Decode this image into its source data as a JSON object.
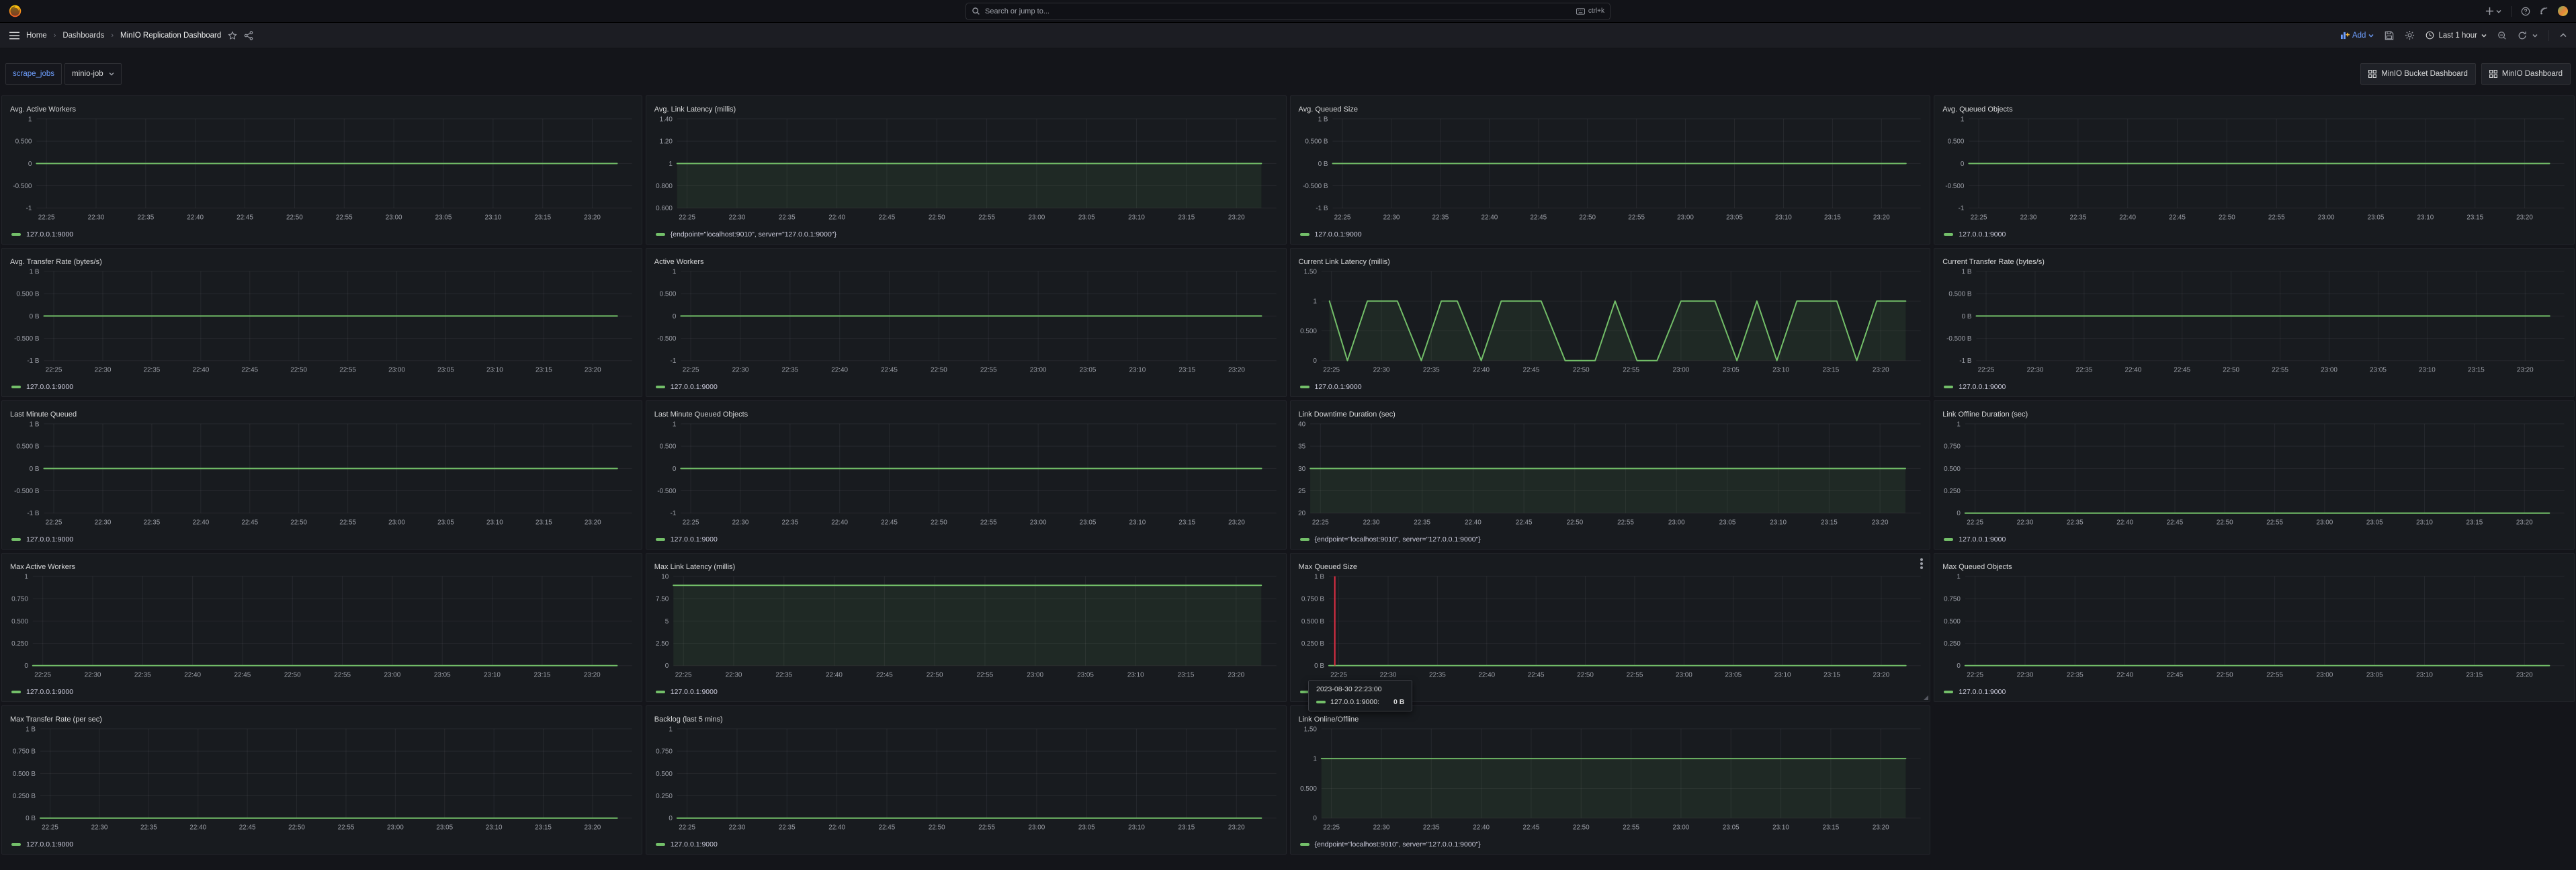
{
  "top_bar": {
    "search_placeholder": "Search or jump to...",
    "shortcut": "ctrl+k"
  },
  "nav": {
    "breadcrumb": [
      "Home",
      "Dashboards",
      "MinIO Replication Dashboard"
    ],
    "add_label": "Add",
    "time_range": "Last 1 hour"
  },
  "subheader": {
    "variable_label": "scrape_jobs",
    "variable_value": "minio-job",
    "links": [
      "MinIO Bucket Dashboard",
      "MinIO Dashboard"
    ]
  },
  "colors": {
    "accent_green": "#73bf69",
    "accent_green_fill": "rgba(115,191,105,0.09)",
    "link_blue": "#6e9fff",
    "annotation_red": "#e02f44",
    "panel_bg": "#181b1f",
    "axis_text": "#9da0a8",
    "grid_line": "rgba(204,204,220,0.08)"
  },
  "tooltip": {
    "time": "2023-08-30 22:23:00",
    "series_label": "127.0.0.1:9000:",
    "value": "0 B"
  },
  "chart_common": {
    "x_ticks": [
      "22:25",
      "22:30",
      "22:35",
      "22:40",
      "22:45",
      "22:50",
      "22:55",
      "23:00",
      "23:05",
      "23:10",
      "23:15",
      "23:20"
    ],
    "x_tick_minutes": [
      1,
      6,
      11,
      16,
      21,
      26,
      31,
      36,
      41,
      46,
      51,
      56
    ],
    "xlim": [
      0,
      60
    ],
    "grid": true,
    "legend_position": "bottom"
  },
  "chart_data": [
    {
      "title": "Avg. Active Workers",
      "type": "line",
      "y_ticks": [
        "1",
        "0.500",
        "0",
        "-0.500",
        "-1"
      ],
      "ylim": [
        -1,
        1
      ],
      "fill": false,
      "legend": "127.0.0.1:9000",
      "series": [
        {
          "name": "127.0.0.1:9000",
          "color": "#73bf69",
          "points": [
            [
              0,
              0
            ],
            [
              58.5,
              0
            ]
          ]
        }
      ]
    },
    {
      "title": "Avg. Link Latency (millis)",
      "type": "area",
      "y_ticks": [
        "1.40",
        "1.20",
        "1",
        "0.800",
        "0.600"
      ],
      "ylim": [
        0.6,
        1.4
      ],
      "fill": true,
      "legend": "{endpoint=\"localhost:9010\", server=\"127.0.0.1:9000\"}",
      "series": [
        {
          "name": "{endpoint=\"localhost:9010\", server=\"127.0.0.1:9000\"}",
          "color": "#73bf69",
          "points": [
            [
              0,
              1
            ],
            [
              58.5,
              1
            ]
          ]
        }
      ]
    },
    {
      "title": "Avg. Queued Size",
      "type": "line",
      "y_ticks": [
        "1 B",
        "0.500 B",
        "0 B",
        "-0.500 B",
        "-1 B"
      ],
      "ylim": [
        -1,
        1
      ],
      "fill": false,
      "legend": "127.0.0.1:9000",
      "series": [
        {
          "name": "127.0.0.1:9000",
          "color": "#73bf69",
          "points": [
            [
              0,
              0
            ],
            [
              58.5,
              0
            ]
          ]
        }
      ]
    },
    {
      "title": "Avg. Queued Objects",
      "type": "line",
      "y_ticks": [
        "1",
        "0.500",
        "0",
        "-0.500",
        "-1"
      ],
      "ylim": [
        -1,
        1
      ],
      "fill": false,
      "legend": "127.0.0.1:9000",
      "series": [
        {
          "name": "127.0.0.1:9000",
          "color": "#73bf69",
          "points": [
            [
              0,
              0
            ],
            [
              58.5,
              0
            ]
          ]
        }
      ]
    },
    {
      "title": "Avg. Transfer Rate (bytes/s)",
      "type": "line",
      "y_ticks": [
        "1 B",
        "0.500 B",
        "0 B",
        "-0.500 B",
        "-1 B"
      ],
      "ylim": [
        -1,
        1
      ],
      "fill": false,
      "legend": "127.0.0.1:9000",
      "series": [
        {
          "name": "127.0.0.1:9000",
          "color": "#73bf69",
          "points": [
            [
              0,
              0
            ],
            [
              58.5,
              0
            ]
          ]
        }
      ]
    },
    {
      "title": "Active Workers",
      "type": "line",
      "y_ticks": [
        "1",
        "0.500",
        "0",
        "-0.500",
        "-1"
      ],
      "ylim": [
        -1,
        1
      ],
      "fill": false,
      "legend": "127.0.0.1:9000",
      "series": [
        {
          "name": "127.0.0.1:9000",
          "color": "#73bf69",
          "points": [
            [
              0,
              0
            ],
            [
              58.5,
              0
            ]
          ]
        }
      ]
    },
    {
      "title": "Current Link Latency (millis)",
      "type": "area",
      "y_ticks": [
        "1.50",
        "1",
        "0.500",
        "0"
      ],
      "ylim": [
        0,
        1.5
      ],
      "fill": true,
      "legend": "127.0.0.1:9000",
      "series": [
        {
          "name": "127.0.0.1:9000",
          "color": "#73bf69",
          "points": [
            [
              0.8,
              1
            ],
            [
              2.6,
              0
            ],
            [
              4.6,
              1
            ],
            [
              7.6,
              1
            ],
            [
              10,
              0
            ],
            [
              12,
              1
            ],
            [
              13.6,
              1
            ],
            [
              16,
              0
            ],
            [
              18,
              1
            ],
            [
              22,
              1
            ],
            [
              24.4,
              0
            ],
            [
              27.4,
              0
            ],
            [
              29.4,
              1
            ],
            [
              31.6,
              0
            ],
            [
              33.6,
              0
            ],
            [
              36,
              1
            ],
            [
              39.4,
              1
            ],
            [
              41.6,
              0
            ],
            [
              43.6,
              1
            ],
            [
              45.6,
              0
            ],
            [
              47.6,
              1
            ],
            [
              51.6,
              1
            ],
            [
              53.6,
              0
            ],
            [
              55.6,
              1
            ],
            [
              58.5,
              1
            ]
          ]
        }
      ]
    },
    {
      "title": "Current Transfer Rate (bytes/s)",
      "type": "line",
      "y_ticks": [
        "1 B",
        "0.500 B",
        "0 B",
        "-0.500 B",
        "-1 B"
      ],
      "ylim": [
        -1,
        1
      ],
      "fill": false,
      "legend": "127.0.0.1:9000",
      "series": [
        {
          "name": "127.0.0.1:9000",
          "color": "#73bf69",
          "points": [
            [
              0,
              0
            ],
            [
              58.5,
              0
            ]
          ]
        }
      ]
    },
    {
      "title": "Last Minute Queued",
      "type": "line",
      "y_ticks": [
        "1 B",
        "0.500 B",
        "0 B",
        "-0.500 B",
        "-1 B"
      ],
      "ylim": [
        -1,
        1
      ],
      "fill": false,
      "legend": "127.0.0.1:9000",
      "series": [
        {
          "name": "127.0.0.1:9000",
          "color": "#73bf69",
          "points": [
            [
              0,
              0
            ],
            [
              58.5,
              0
            ]
          ]
        }
      ]
    },
    {
      "title": "Last Minute Queued Objects",
      "type": "line",
      "y_ticks": [
        "1",
        "0.500",
        "0",
        "-0.500",
        "-1"
      ],
      "ylim": [
        -1,
        1
      ],
      "fill": false,
      "legend": "127.0.0.1:9000",
      "series": [
        {
          "name": "127.0.0.1:9000",
          "color": "#73bf69",
          "points": [
            [
              0,
              0
            ],
            [
              58.5,
              0
            ]
          ]
        }
      ]
    },
    {
      "title": "Link Downtime Duration (sec)",
      "type": "area",
      "y_ticks": [
        "40",
        "35",
        "30",
        "25",
        "20"
      ],
      "ylim": [
        20,
        40
      ],
      "fill": true,
      "legend": "{endpoint=\"localhost:9010\", server=\"127.0.0.1:9000\"}",
      "series": [
        {
          "name": "{endpoint=\"localhost:9010\", server=\"127.0.0.1:9000\"}",
          "color": "#73bf69",
          "points": [
            [
              0,
              30
            ],
            [
              58.5,
              30
            ]
          ]
        }
      ]
    },
    {
      "title": "Link Offline Duration (sec)",
      "type": "line",
      "y_ticks": [
        "1",
        "0.750",
        "0.500",
        "0.250",
        "0"
      ],
      "ylim": [
        0,
        1
      ],
      "fill": false,
      "legend": "127.0.0.1:9000",
      "series": [
        {
          "name": "127.0.0.1:9000",
          "color": "#73bf69",
          "points": [
            [
              0,
              0
            ],
            [
              58.5,
              0
            ]
          ]
        }
      ]
    },
    {
      "title": "Max Active Workers",
      "type": "line",
      "y_ticks": [
        "1",
        "0.750",
        "0.500",
        "0.250",
        "0"
      ],
      "ylim": [
        0,
        1
      ],
      "fill": false,
      "legend": "127.0.0.1:9000",
      "series": [
        {
          "name": "127.0.0.1:9000",
          "color": "#73bf69",
          "points": [
            [
              0,
              0
            ],
            [
              58.5,
              0
            ]
          ]
        }
      ]
    },
    {
      "title": "Max Link Latency (millis)",
      "type": "area",
      "y_ticks": [
        "10",
        "7.50",
        "5",
        "2.50",
        "0"
      ],
      "ylim": [
        0,
        10
      ],
      "fill": true,
      "legend": "127.0.0.1:9000",
      "series": [
        {
          "name": "127.0.0.1:9000",
          "color": "#73bf69",
          "points": [
            [
              0,
              9
            ],
            [
              58.5,
              9
            ]
          ]
        }
      ]
    },
    {
      "title": "Max Queued Size",
      "type": "line",
      "y_ticks": [
        "1 B",
        "0.750 B",
        "0.500 B",
        "0.250 B",
        "0 B"
      ],
      "ylim": [
        0,
        1
      ],
      "fill": false,
      "legend": "127.0.0.1:9000",
      "annotation_minute": 0.6,
      "menu": true,
      "resize_handle": true,
      "series": [
        {
          "name": "127.0.0.1:9000",
          "color": "#73bf69",
          "points": [
            [
              0,
              0
            ],
            [
              58.5,
              0
            ]
          ]
        }
      ]
    },
    {
      "title": "Max Queued Objects",
      "type": "line",
      "y_ticks": [
        "1",
        "0.750",
        "0.500",
        "0.250",
        "0"
      ],
      "ylim": [
        0,
        1
      ],
      "fill": false,
      "legend": "127.0.0.1:9000",
      "series": [
        {
          "name": "127.0.0.1:9000",
          "color": "#73bf69",
          "points": [
            [
              0,
              0
            ],
            [
              58.5,
              0
            ]
          ]
        }
      ]
    },
    {
      "title": "Max Transfer Rate (per sec)",
      "type": "line",
      "y_ticks": [
        "1 B",
        "0.750 B",
        "0.500 B",
        "0.250 B",
        "0 B"
      ],
      "ylim": [
        0,
        1
      ],
      "fill": false,
      "legend": "127.0.0.1:9000",
      "series": [
        {
          "name": "127.0.0.1:9000",
          "color": "#73bf69",
          "points": [
            [
              0,
              0
            ],
            [
              58.5,
              0
            ]
          ]
        }
      ]
    },
    {
      "title": "Backlog (last 5 mins)",
      "type": "line",
      "y_ticks": [
        "1",
        "0.750",
        "0.500",
        "0.250",
        "0"
      ],
      "ylim": [
        0,
        1
      ],
      "fill": false,
      "legend": "127.0.0.1:9000",
      "series": [
        {
          "name": "127.0.0.1:9000",
          "color": "#73bf69",
          "points": [
            [
              0,
              0
            ],
            [
              58.5,
              0
            ]
          ]
        }
      ]
    },
    {
      "title": "Link Online/Offline",
      "type": "area",
      "y_ticks": [
        "1.50",
        "1",
        "0.500",
        "0"
      ],
      "ylim": [
        0,
        1.5
      ],
      "fill": true,
      "legend": "{endpoint=\"localhost:9010\", server=\"127.0.0.1:9000\"}",
      "series": [
        {
          "name": "{endpoint=\"localhost:9010\", server=\"127.0.0.1:9000\"}",
          "color": "#73bf69",
          "points": [
            [
              0,
              1
            ],
            [
              58.5,
              1
            ]
          ]
        }
      ]
    }
  ]
}
